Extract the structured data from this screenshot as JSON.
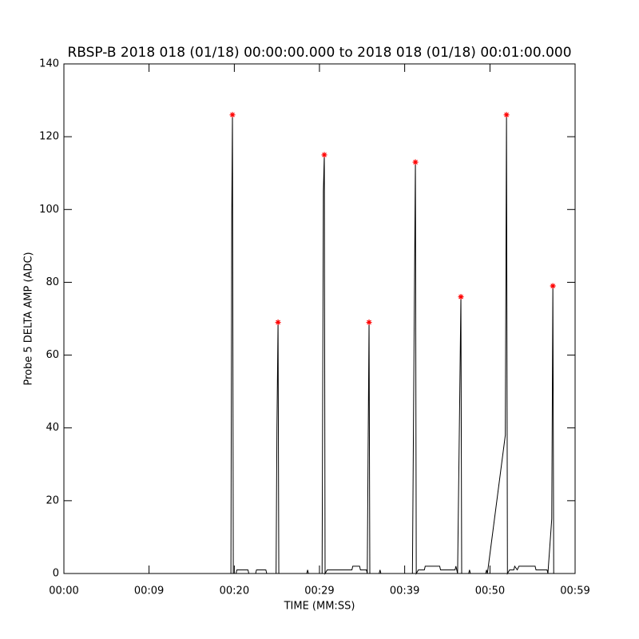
{
  "chart_data": {
    "type": "line",
    "title": "RBSP-B 2018 018 (01/18) 00:00:00.000 to 2018 018 (01/18) 00:01:00.000",
    "x_label": "TIME (MM:SS)",
    "y_label": "Probe 5 DELTA AMP (ADC)",
    "xlim": [
      0,
      59.99
    ],
    "xticks": [
      {
        "value": 0,
        "label": "00:00"
      },
      {
        "value": 9.99,
        "label": "00:09"
      },
      {
        "value": 20,
        "label": "00:20"
      },
      {
        "value": 29.99,
        "label": "00:29"
      },
      {
        "value": 39.99,
        "label": "00:39"
      },
      {
        "value": 50,
        "label": "00:50"
      },
      {
        "value": 59.99,
        "label": "00:59"
      }
    ],
    "ylim": [
      0,
      140
    ],
    "yticks": [
      0,
      20,
      40,
      60,
      80,
      100,
      120,
      140
    ],
    "series": [
      {
        "color": "#000000",
        "x": [
          0,
          19.6,
          19.7,
          19.78,
          19.88,
          20.2,
          20.3,
          21.6,
          21.7,
          22.5,
          22.6,
          23.7,
          23.8,
          24.9,
          25.0,
          25.13,
          25.22,
          28.5,
          28.6,
          28.7,
          30.3,
          30.45,
          30.56,
          30.65,
          30.9,
          33.8,
          33.9,
          34.7,
          34.8,
          35.5,
          35.6,
          35.7,
          35.81,
          35.9,
          37.0,
          37.1,
          37.2,
          40.9,
          41.1,
          41.25,
          41.35,
          41.6,
          42.3,
          42.4,
          44.1,
          44.2,
          45.9,
          46.0,
          46.2,
          46.45,
          46.59,
          46.68,
          47.5,
          47.6,
          47.7,
          49.5,
          49.6,
          49.7,
          51.8,
          51.94,
          52.05,
          52.3,
          52.8,
          52.9,
          53.2,
          53.4,
          55.3,
          55.4,
          56.7,
          56.8,
          57.25,
          57.38,
          57.48,
          57.6
        ],
        "values": [
          0,
          0,
          99,
          126,
          0,
          0,
          1,
          1,
          0,
          0,
          1,
          1,
          0,
          0,
          40,
          69,
          0,
          0,
          1,
          0,
          0,
          105,
          115,
          0,
          1,
          1,
          2,
          2,
          1,
          1,
          0,
          34,
          69,
          0,
          0,
          1,
          0,
          0,
          66,
          113,
          0,
          1,
          1,
          2,
          2,
          1,
          1,
          2,
          0,
          48,
          76,
          0,
          0,
          1,
          0,
          0,
          1,
          0,
          38,
          126,
          0,
          1,
          1,
          2,
          1,
          2,
          2,
          1,
          1,
          0,
          15,
          79,
          0,
          0
        ]
      },
      {
        "color": "#ff0000",
        "x": [
          19.78,
          25.13,
          30.56,
          35.81,
          41.25,
          46.59,
          51.94,
          57.38
        ],
        "values": [
          126,
          69,
          115,
          69,
          113,
          76,
          126,
          79
        ]
      }
    ]
  }
}
